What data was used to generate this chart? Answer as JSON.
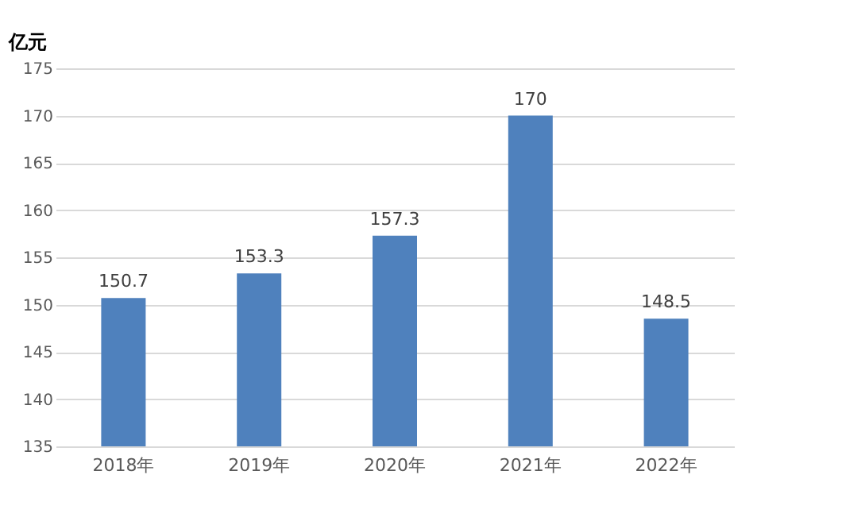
{
  "chart_data": {
    "type": "bar",
    "ylabel": "亿元",
    "categories": [
      "2018年",
      "2019年",
      "2020年",
      "2021年",
      "2022年"
    ],
    "values": [
      150.7,
      153.3,
      157.3,
      170,
      148.5
    ],
    "color": "#4f81bd",
    "ylim": [
      135,
      175
    ],
    "yticks": [
      135,
      140,
      145,
      150,
      155,
      160,
      165,
      170,
      175
    ],
    "grid": "y",
    "data_labels": true
  }
}
